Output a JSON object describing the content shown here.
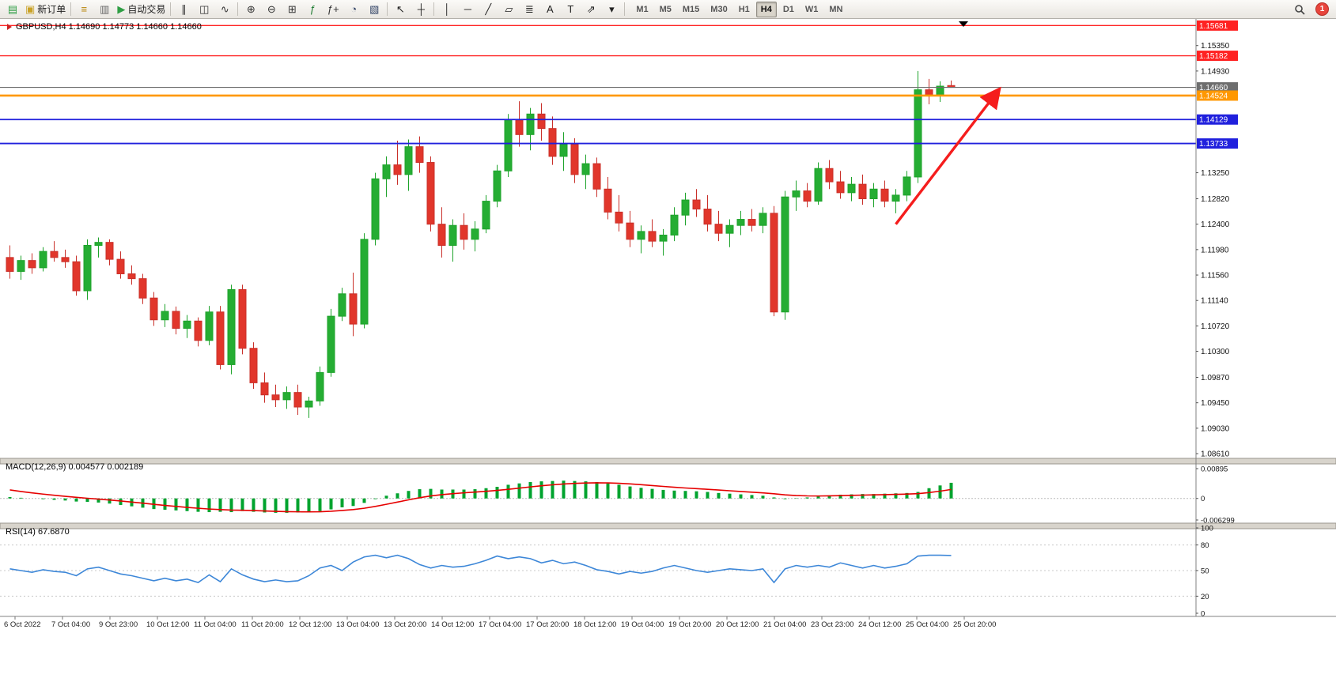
{
  "toolbar": {
    "timeframes": [
      "M1",
      "M5",
      "M15",
      "M30",
      "H1",
      "H4",
      "D1",
      "W1",
      "MN"
    ],
    "active_timeframe": "H4",
    "notification_badge": "1",
    "groups": [
      {
        "items": [
          {
            "name": "new-chart-button",
            "glyph": "▤",
            "color": "#2f9e44"
          },
          {
            "name": "new-order-button",
            "glyph": "▣",
            "color": "#c9a227",
            "label": "新订单"
          }
        ]
      },
      {
        "items": [
          {
            "name": "market-watch-button",
            "glyph": "≡",
            "color": "#b8860b"
          },
          {
            "name": "data-window-button",
            "glyph": "▥",
            "color": "#666666"
          },
          {
            "name": "auto-trading-button",
            "glyph": "▶",
            "color": "#2f9e44",
            "label": "自动交易"
          }
        ]
      },
      {
        "items": [
          {
            "name": "bar-chart-type-button",
            "glyph": "∥",
            "color": "#333333"
          },
          {
            "name": "candlestick-type-button",
            "glyph": "◫",
            "color": "#333333"
          },
          {
            "name": "line-chart-type-button",
            "glyph": "∿",
            "color": "#333333"
          }
        ]
      },
      {
        "items": [
          {
            "name": "zoom-in-button",
            "glyph": "⊕",
            "color": "#333333"
          },
          {
            "name": "zoom-out-button",
            "glyph": "⊖",
            "color": "#333333"
          },
          {
            "name": "tile-windows-button",
            "glyph": "⊞",
            "color": "#333333"
          },
          {
            "name": "indicators-button",
            "glyph": "ƒ",
            "color": "#1a7a2e"
          },
          {
            "name": "add-indicator-button",
            "glyph": "ƒ+",
            "color": "#333333"
          },
          {
            "name": "period-button",
            "glyph": "◔",
            "color": "#334466"
          },
          {
            "name": "template-button",
            "glyph": "▧",
            "color": "#334466"
          }
        ]
      },
      {
        "items": [
          {
            "name": "cursor-button",
            "glyph": "↖",
            "color": "#222222"
          },
          {
            "name": "crosshair-button",
            "glyph": "┼",
            "color": "#222222"
          }
        ]
      },
      {
        "items": [
          {
            "name": "vertical-line-button",
            "glyph": "│",
            "color": "#222222"
          },
          {
            "name": "horizontal-line-button",
            "glyph": "─",
            "color": "#222222"
          },
          {
            "name": "trendline-button",
            "glyph": "╱",
            "color": "#222222"
          },
          {
            "name": "channel-button",
            "glyph": "▱",
            "color": "#222222"
          },
          {
            "name": "fibonacci-button",
            "glyph": "≣",
            "color": "#222222"
          },
          {
            "name": "text-button",
            "glyph": "A",
            "color": "#222222"
          },
          {
            "name": "label-button",
            "glyph": "T",
            "color": "#222222"
          },
          {
            "name": "arrows-button",
            "glyph": "⇗",
            "color": "#222222"
          },
          {
            "name": "arrows-dropdown",
            "glyph": "▾",
            "color": "#222222"
          }
        ]
      }
    ]
  },
  "chart_data": [
    {
      "type": "candlestick",
      "symbol": "GBPUSD",
      "timeframe": "H4",
      "header": "GBPUSD,H4  1.14690 1.14773 1.14660 1.14660",
      "current_ohlc": {
        "open": "1.14690",
        "high": "1.14773",
        "low": "1.14660",
        "close": "1.14660"
      },
      "up_color": "#25ad33",
      "down_color": "#e1362b",
      "x_labels": [
        "6 Oct 2022",
        "7 Oct 04:00",
        "9 Oct 23:00",
        "10 Oct 12:00",
        "11 Oct 04:00",
        "11 Oct 20:00",
        "12 Oct 12:00",
        "13 Oct 04:00",
        "13 Oct 20:00",
        "14 Oct 12:00",
        "17 Oct 04:00",
        "17 Oct 20:00",
        "18 Oct 12:00",
        "19 Oct 04:00",
        "19 Oct 20:00",
        "20 Oct 12:00",
        "21 Oct 04:00",
        "23 Oct 23:00",
        "24 Oct 12:00",
        "25 Oct 04:00",
        "25 Oct 20:00"
      ],
      "y_axis_labels": [
        "1.15350",
        "1.14930",
        "1.13250",
        "1.12820",
        "1.12400",
        "1.11980",
        "1.11560",
        "1.11140",
        "1.10720",
        "1.10300",
        "1.09870",
        "1.09450",
        "1.09030",
        "1.08610"
      ],
      "horizontal_lines": [
        {
          "label": "1.15681",
          "value": 1.15681,
          "color": "#ff2222",
          "width": 1.4
        },
        {
          "label": "1.15182",
          "value": 1.15182,
          "color": "#ff2222",
          "width": 1.4
        },
        {
          "label": "1.14660",
          "value": 1.1466,
          "color": "#6e6e6e",
          "width": 1.2
        },
        {
          "label": "1.14524",
          "value": 1.14524,
          "color": "#ff9800",
          "width": 2.6
        },
        {
          "label": "1.14129",
          "value": 1.14129,
          "color": "#2020dd",
          "width": 1.8
        },
        {
          "label": "1.13733",
          "value": 1.13733,
          "color": "#2020dd",
          "width": 1.8
        }
      ],
      "annotations": [
        {
          "type": "arrow",
          "color": "#f51d1d",
          "from_bar": 80,
          "from_price": 1.124,
          "to_bar": 89.3,
          "to_price": 1.1462
        }
      ],
      "ohlc": [
        [
          1.1185,
          1.1205,
          1.115,
          1.1162
        ],
        [
          1.1162,
          1.1188,
          1.1148,
          1.118
        ],
        [
          1.118,
          1.1192,
          1.1158,
          1.1168
        ],
        [
          1.1168,
          1.1202,
          1.1162,
          1.1195
        ],
        [
          1.1195,
          1.1212,
          1.1178,
          1.1185
        ],
        [
          1.1185,
          1.1198,
          1.1168,
          1.1178
        ],
        [
          1.1178,
          1.1188,
          1.1122,
          1.113
        ],
        [
          1.113,
          1.1215,
          1.1115,
          1.1205
        ],
        [
          1.1205,
          1.1218,
          1.1185,
          1.121
        ],
        [
          1.121,
          1.1215,
          1.1172,
          1.1182
        ],
        [
          1.1182,
          1.1195,
          1.115,
          1.1158
        ],
        [
          1.1158,
          1.1172,
          1.114,
          1.115
        ],
        [
          1.115,
          1.1158,
          1.1108,
          1.1118
        ],
        [
          1.1118,
          1.1128,
          1.1072,
          1.1082
        ],
        [
          1.1082,
          1.1108,
          1.107,
          1.1096
        ],
        [
          1.1096,
          1.1104,
          1.1058,
          1.1068
        ],
        [
          1.1068,
          1.109,
          1.1052,
          1.108
        ],
        [
          1.108,
          1.1086,
          1.1038,
          1.1048
        ],
        [
          1.1048,
          1.1105,
          1.104,
          1.1095
        ],
        [
          1.1095,
          1.1105,
          1.1,
          1.1008
        ],
        [
          1.1008,
          1.114,
          1.0992,
          1.1132
        ],
        [
          1.1132,
          1.114,
          1.1025,
          1.1035
        ],
        [
          1.1035,
          1.1045,
          1.0968,
          1.0978
        ],
        [
          1.0978,
          1.0995,
          1.0945,
          1.0958
        ],
        [
          1.0958,
          1.0975,
          1.0938,
          1.095
        ],
        [
          1.095,
          1.0972,
          1.0935,
          1.0962
        ],
        [
          1.0962,
          1.0975,
          1.0925,
          1.0938
        ],
        [
          1.0938,
          1.0955,
          1.092,
          1.0948
        ],
        [
          1.0948,
          1.1005,
          1.094,
          1.0995
        ],
        [
          1.0995,
          1.11,
          1.0988,
          1.1088
        ],
        [
          1.1088,
          1.1135,
          1.108,
          1.1125
        ],
        [
          1.1125,
          1.116,
          1.1055,
          1.1075
        ],
        [
          1.1075,
          1.1225,
          1.1068,
          1.1215
        ],
        [
          1.1215,
          1.1325,
          1.1205,
          1.1315
        ],
        [
          1.1315,
          1.1352,
          1.1285,
          1.1338
        ],
        [
          1.1338,
          1.1378,
          1.1305,
          1.1322
        ],
        [
          1.1322,
          1.138,
          1.1295,
          1.1368
        ],
        [
          1.1368,
          1.1385,
          1.1325,
          1.1342
        ],
        [
          1.1342,
          1.1352,
          1.1228,
          1.124
        ],
        [
          1.124,
          1.1268,
          1.1185,
          1.1205
        ],
        [
          1.1205,
          1.1248,
          1.1178,
          1.1238
        ],
        [
          1.1238,
          1.1258,
          1.1198,
          1.1215
        ],
        [
          1.1215,
          1.1245,
          1.1195,
          1.1232
        ],
        [
          1.1232,
          1.1288,
          1.1225,
          1.1278
        ],
        [
          1.1278,
          1.1338,
          1.1268,
          1.1328
        ],
        [
          1.1328,
          1.1422,
          1.1318,
          1.1412
        ],
        [
          1.1412,
          1.1443,
          1.1368,
          1.1388
        ],
        [
          1.1388,
          1.1432,
          1.1362,
          1.1422
        ],
        [
          1.1422,
          1.144,
          1.1378,
          1.1398
        ],
        [
          1.1398,
          1.1418,
          1.1338,
          1.1352
        ],
        [
          1.1352,
          1.1392,
          1.1328,
          1.1372
        ],
        [
          1.1372,
          1.1382,
          1.1308,
          1.1322
        ],
        [
          1.1322,
          1.1355,
          1.1298,
          1.134
        ],
        [
          1.134,
          1.135,
          1.1285,
          1.1298
        ],
        [
          1.1298,
          1.1318,
          1.1248,
          1.126
        ],
        [
          1.126,
          1.1288,
          1.1228,
          1.1242
        ],
        [
          1.1242,
          1.1262,
          1.1202,
          1.1215
        ],
        [
          1.1215,
          1.1238,
          1.1192,
          1.1228
        ],
        [
          1.1228,
          1.1248,
          1.1202,
          1.1212
        ],
        [
          1.1212,
          1.1232,
          1.1188,
          1.1222
        ],
        [
          1.1222,
          1.1268,
          1.1212,
          1.1255
        ],
        [
          1.1255,
          1.1292,
          1.1238,
          1.128
        ],
        [
          1.128,
          1.1298,
          1.1252,
          1.1265
        ],
        [
          1.1265,
          1.1288,
          1.1228,
          1.124
        ],
        [
          1.124,
          1.1262,
          1.1212,
          1.1225
        ],
        [
          1.1225,
          1.1248,
          1.1202,
          1.1238
        ],
        [
          1.1238,
          1.1262,
          1.1222,
          1.1248
        ],
        [
          1.1248,
          1.1265,
          1.1228,
          1.1238
        ],
        [
          1.1238,
          1.1268,
          1.1225,
          1.1258
        ],
        [
          1.1258,
          1.127,
          1.1088,
          1.1095
        ],
        [
          1.1095,
          1.1295,
          1.1082,
          1.1285
        ],
        [
          1.1285,
          1.1312,
          1.1262,
          1.1295
        ],
        [
          1.1295,
          1.1308,
          1.1268,
          1.1278
        ],
        [
          1.1278,
          1.1342,
          1.1272,
          1.1332
        ],
        [
          1.1332,
          1.1346,
          1.1298,
          1.131
        ],
        [
          1.131,
          1.1328,
          1.1282,
          1.1292
        ],
        [
          1.1292,
          1.1318,
          1.1278,
          1.1306
        ],
        [
          1.1306,
          1.1322,
          1.1272,
          1.1282
        ],
        [
          1.1282,
          1.1308,
          1.1268,
          1.1298
        ],
        [
          1.1298,
          1.1312,
          1.1268,
          1.1278
        ],
        [
          1.1278,
          1.1298,
          1.1258,
          1.1288
        ],
        [
          1.1288,
          1.1328,
          1.1278,
          1.1318
        ],
        [
          1.1318,
          1.1493,
          1.1308,
          1.1462
        ],
        [
          1.1462,
          1.148,
          1.1438,
          1.1452
        ],
        [
          1.1452,
          1.1476,
          1.1442,
          1.1468
        ],
        [
          1.1469,
          1.14773,
          1.1466,
          1.1466
        ]
      ]
    },
    {
      "type": "bar",
      "name": "MACD",
      "label": "MACD(12,26,9) 0.004577 0.002189",
      "params": "12,26,9",
      "main_value": "0.004577",
      "signal_value": "0.002189",
      "scale": {
        "max": "0.00895",
        "zero": "0",
        "min": "-0.006299"
      },
      "histogram_color": "#00a32e",
      "signal_color": "#e60000",
      "histogram": [
        0.0004,
        0.0002,
        0.0,
        -0.0002,
        -0.0004,
        -0.0006,
        -0.0009,
        -0.001,
        -0.0012,
        -0.0015,
        -0.0019,
        -0.0023,
        -0.0027,
        -0.0031,
        -0.0033,
        -0.0035,
        -0.0037,
        -0.0039,
        -0.004,
        -0.0039,
        -0.004,
        -0.0037,
        -0.0039,
        -0.0041,
        -0.0042,
        -0.0042,
        -0.0041,
        -0.004,
        -0.0037,
        -0.0032,
        -0.0026,
        -0.0022,
        -0.0013,
        -0.0002,
        0.0008,
        0.0015,
        0.0022,
        0.0027,
        0.0028,
        0.0026,
        0.0026,
        0.0026,
        0.0027,
        0.003,
        0.0034,
        0.004,
        0.0044,
        0.0048,
        0.005,
        0.0051,
        0.0052,
        0.0051,
        0.005,
        0.0048,
        0.0044,
        0.004,
        0.0035,
        0.0031,
        0.0028,
        0.0025,
        0.0023,
        0.0022,
        0.0021,
        0.0019,
        0.0016,
        0.0014,
        0.0012,
        0.001,
        0.0008,
        0.0003,
        -0.0002,
        0.0001,
        0.0003,
        0.0006,
        0.0009,
        0.0011,
        0.0012,
        0.0013,
        0.0013,
        0.0014,
        0.0015,
        0.0016,
        0.0019,
        0.003,
        0.0038,
        0.004577
      ]
    },
    {
      "type": "line",
      "name": "RSI",
      "label": "RSI(14) 67.6870",
      "period": "14",
      "value": "67.6870",
      "color": "#3d87d8",
      "levels": [
        80,
        50,
        20
      ],
      "scale_labels": [
        "100",
        "80",
        "50",
        "20",
        "0"
      ],
      "values": [
        52,
        50,
        48,
        51,
        49,
        48,
        44,
        52,
        54,
        50,
        46,
        44,
        41,
        38,
        41,
        38,
        40,
        36,
        45,
        37,
        52,
        45,
        40,
        37,
        39,
        37,
        38,
        44,
        53,
        56,
        50,
        60,
        66,
        68,
        65,
        68,
        64,
        57,
        53,
        56,
        54,
        55,
        58,
        62,
        67,
        64,
        66,
        64,
        59,
        62,
        58,
        60,
        56,
        51,
        49,
        46,
        49,
        47,
        49,
        53,
        56,
        53,
        50,
        48,
        50,
        52,
        51,
        50,
        52,
        36,
        52,
        56,
        54,
        56,
        54,
        59,
        56,
        53,
        56,
        53,
        55,
        58,
        67,
        68,
        68,
        67.687
      ]
    }
  ]
}
